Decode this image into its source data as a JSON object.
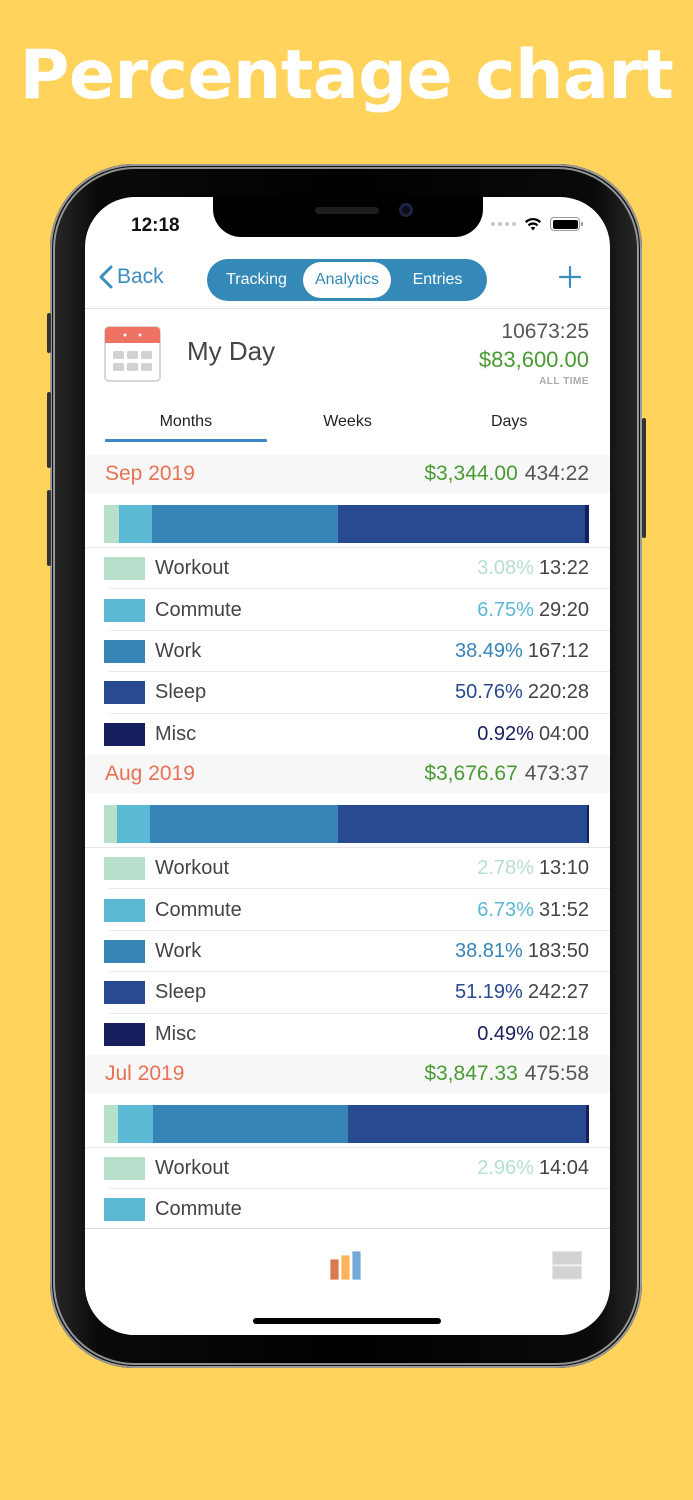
{
  "promo": {
    "title": "Percentage chart",
    "background": "#FFD35C"
  },
  "status_bar": {
    "time": "12:18",
    "icons": [
      "signal-dots-icon",
      "wifi-icon",
      "battery-icon"
    ]
  },
  "navbar": {
    "back_label": "Back",
    "segments": [
      "Tracking",
      "Analytics",
      "Entries"
    ],
    "active_segment": "Analytics",
    "add_icon": "plus-icon",
    "accent": "#3489B8"
  },
  "summary": {
    "icon": "calendar-icon",
    "title": "My Day",
    "total_time": "10673:25",
    "total_money": "$83,600.00",
    "period_label": "ALL TIME"
  },
  "range_tabs": {
    "items": [
      "Months",
      "Weeks",
      "Days"
    ],
    "active": "Months"
  },
  "category_colors": {
    "Workout": "#B6E0CC",
    "Commute": "#5BB9D3",
    "Work": "#3784B6",
    "Sleep": "#284A91",
    "Misc": "#161E5E"
  },
  "months": [
    {
      "name": "Sep 2019",
      "money": "$3,344.00",
      "time": "434:22",
      "categories": [
        {
          "name": "Workout",
          "pct": "3.08%",
          "time": "13:22"
        },
        {
          "name": "Commute",
          "pct": "6.75%",
          "time": "29:20"
        },
        {
          "name": "Work",
          "pct": "38.49%",
          "time": "167:12"
        },
        {
          "name": "Sleep",
          "pct": "50.76%",
          "time": "220:28"
        },
        {
          "name": "Misc",
          "pct": "0.92%",
          "time": "04:00"
        }
      ]
    },
    {
      "name": "Aug 2019",
      "money": "$3,676.67",
      "time": "473:37",
      "categories": [
        {
          "name": "Workout",
          "pct": "2.78%",
          "time": "13:10"
        },
        {
          "name": "Commute",
          "pct": "6.73%",
          "time": "31:52"
        },
        {
          "name": "Work",
          "pct": "38.81%",
          "time": "183:50"
        },
        {
          "name": "Sleep",
          "pct": "51.19%",
          "time": "242:27"
        },
        {
          "name": "Misc",
          "pct": "0.49%",
          "time": "02:18"
        }
      ]
    },
    {
      "name": "Jul 2019",
      "money": "$3,847.33",
      "time": "475:58",
      "categories": [
        {
          "name": "Workout",
          "pct": "2.96%",
          "time": "14:04"
        },
        {
          "name": "Commute",
          "pct": "",
          "time": ""
        }
      ]
    }
  ],
  "tabbar": {
    "items": [
      "bar-chart-icon",
      "list-icon"
    ],
    "active": "bar-chart-icon"
  },
  "chart_data": {
    "type": "bar",
    "stacked": true,
    "normalized": true,
    "title": "Percentage chart",
    "orientation": "horizontal",
    "categories": [
      "Sep 2019",
      "Aug 2019",
      "Jul 2019"
    ],
    "series": [
      {
        "name": "Workout",
        "color": "#B6E0CC",
        "values": [
          3.08,
          2.78,
          2.96
        ]
      },
      {
        "name": "Commute",
        "color": "#5BB9D3",
        "values": [
          6.75,
          6.73,
          7.1
        ]
      },
      {
        "name": "Work",
        "color": "#3784B6",
        "values": [
          38.49,
          38.81,
          40.3
        ]
      },
      {
        "name": "Sleep",
        "color": "#284A91",
        "values": [
          50.76,
          51.19,
          49.1
        ]
      },
      {
        "name": "Misc",
        "color": "#161E5E",
        "values": [
          0.92,
          0.49,
          0.5
        ]
      }
    ],
    "times": {
      "Sep 2019": [
        "13:22",
        "29:20",
        "167:12",
        "220:28",
        "04:00"
      ],
      "Aug 2019": [
        "13:10",
        "31:52",
        "183:50",
        "242:27",
        "02:18"
      ],
      "Jul 2019": [
        "14:04"
      ]
    },
    "xlabel": "",
    "ylabel": "",
    "xlim": [
      0,
      100
    ],
    "legend": "rows below each bar"
  }
}
